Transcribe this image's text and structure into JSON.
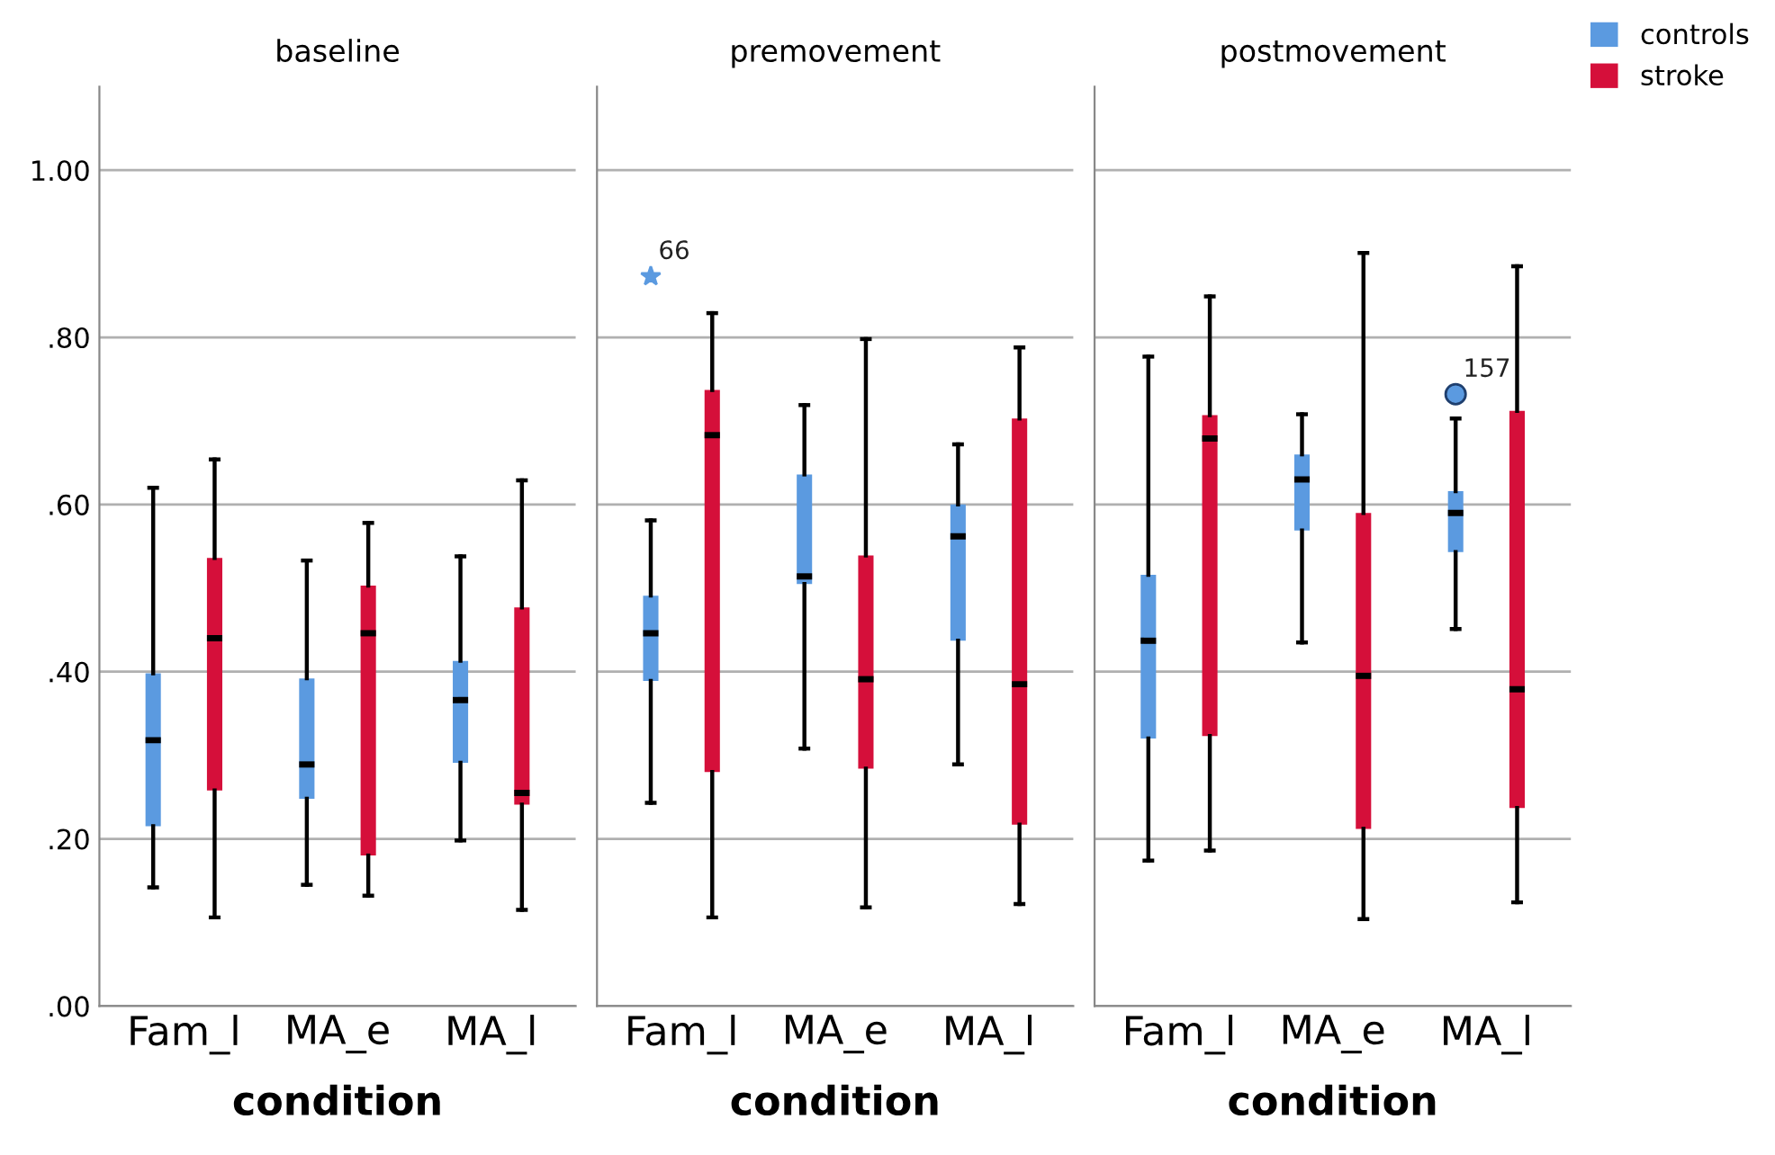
{
  "chart_data": [
    {
      "type": "box",
      "title": "baseline",
      "xlabel": "condition",
      "legend": "top right",
      "categories": [
        "Fam_l",
        "MA_e",
        "MA_l"
      ],
      "ylim": [
        0,
        1.1
      ],
      "yticks": [
        {
          "value": 0,
          "label": ".00"
        },
        {
          "value": 0.2,
          "label": ".20"
        },
        {
          "value": 0.4,
          "label": ".40"
        },
        {
          "value": 0.6,
          "label": ".60"
        },
        {
          "value": 0.8,
          "label": ".80"
        },
        {
          "value": 1.0,
          "label": "1.00"
        }
      ],
      "grid": "y",
      "series": [
        {
          "name": "controls",
          "color": "#5b9ae0",
          "boxes": [
            {
              "low": 0.142,
              "q1": 0.215,
              "median": 0.318,
              "q3": 0.398,
              "high": 0.62
            },
            {
              "low": 0.145,
              "q1": 0.248,
              "median": 0.289,
              "q3": 0.392,
              "high": 0.533
            },
            {
              "low": 0.198,
              "q1": 0.291,
              "median": 0.366,
              "q3": 0.413,
              "high": 0.538
            }
          ]
        },
        {
          "name": "stroke",
          "color": "#d50f3a",
          "boxes": [
            {
              "low": 0.106,
              "q1": 0.258,
              "median": 0.44,
              "q3": 0.536,
              "high": 0.654
            },
            {
              "low": 0.132,
              "q1": 0.18,
              "median": 0.446,
              "q3": 0.503,
              "high": 0.578
            },
            {
              "low": 0.115,
              "q1": 0.241,
              "median": 0.255,
              "q3": 0.477,
              "high": 0.629
            }
          ]
        }
      ]
    },
    {
      "type": "box",
      "title": "premovement",
      "xlabel": "condition",
      "categories": [
        "Fam_l",
        "MA_e",
        "MA_l"
      ],
      "ylim": [
        0,
        1.1
      ],
      "yticks": [
        {
          "value": 0,
          "label": null
        },
        {
          "value": 0.2,
          "label": null
        },
        {
          "value": 0.4,
          "label": null
        },
        {
          "value": 0.6,
          "label": null
        },
        {
          "value": 0.8,
          "label": null
        },
        {
          "value": 1.0,
          "label": null
        }
      ],
      "tick_labels": "x",
      "grid": "y",
      "annotations": [
        "66"
      ],
      "series": [
        {
          "color": "#5b9ae0",
          "marker": "star",
          "boxes": [
            {
              "low": 0.243,
              "q1": 0.389,
              "median": 0.446,
              "q3": 0.491,
              "high": 0.581,
              "outliers": [
                0.873
              ]
            },
            {
              "low": 0.308,
              "q1": 0.505,
              "median": 0.514,
              "q3": 0.636,
              "high": 0.719
            },
            {
              "low": 0.289,
              "q1": 0.437,
              "median": 0.562,
              "q3": 0.6,
              "high": 0.672
            }
          ]
        },
        {
          "color": "#d50f3a",
          "boxes": [
            {
              "low": 0.106,
              "q1": 0.28,
              "median": 0.683,
              "q3": 0.737,
              "high": 0.829
            },
            {
              "low": 0.118,
              "q1": 0.284,
              "median": 0.391,
              "q3": 0.539,
              "high": 0.798
            },
            {
              "low": 0.122,
              "q1": 0.217,
              "median": 0.385,
              "q3": 0.703,
              "high": 0.788
            }
          ]
        }
      ]
    },
    {
      "type": "box",
      "title": "postmovement",
      "xlabel": "condition",
      "categories": [
        "Fam_l",
        "MA_e",
        "MA_l"
      ],
      "ylim": [
        0,
        1.1
      ],
      "yticks": [
        {
          "value": 0,
          "label": null
        },
        {
          "value": 0.2,
          "label": null
        },
        {
          "value": 0.4,
          "label": null
        },
        {
          "value": 0.6,
          "label": null
        },
        {
          "value": 0.8,
          "label": null
        },
        {
          "value": 1.0,
          "label": null
        }
      ],
      "tick_labels": "x",
      "grid": "y",
      "annotations": [
        "157"
      ],
      "series": [
        {
          "color": "#5b9ae0",
          "marker": "circle",
          "boxes": [
            {
              "low": 0.174,
              "q1": 0.32,
              "median": 0.437,
              "q3": 0.516,
              "high": 0.777
            },
            {
              "low": 0.435,
              "q1": 0.569,
              "median": 0.63,
              "q3": 0.66,
              "high": 0.708
            },
            {
              "low": 0.451,
              "q1": 0.543,
              "median": 0.59,
              "q3": 0.616,
              "high": 0.703,
              "outliers": [
                0.732
              ]
            }
          ]
        },
        {
          "color": "#d50f3a",
          "boxes": [
            {
              "low": 0.186,
              "q1": 0.323,
              "median": 0.679,
              "q3": 0.707,
              "high": 0.849
            },
            {
              "low": 0.104,
              "q1": 0.212,
              "median": 0.395,
              "q3": 0.59,
              "high": 0.901
            },
            {
              "low": 0.124,
              "q1": 0.237,
              "median": 0.379,
              "q3": 0.712,
              "high": 0.885
            }
          ]
        }
      ]
    }
  ]
}
